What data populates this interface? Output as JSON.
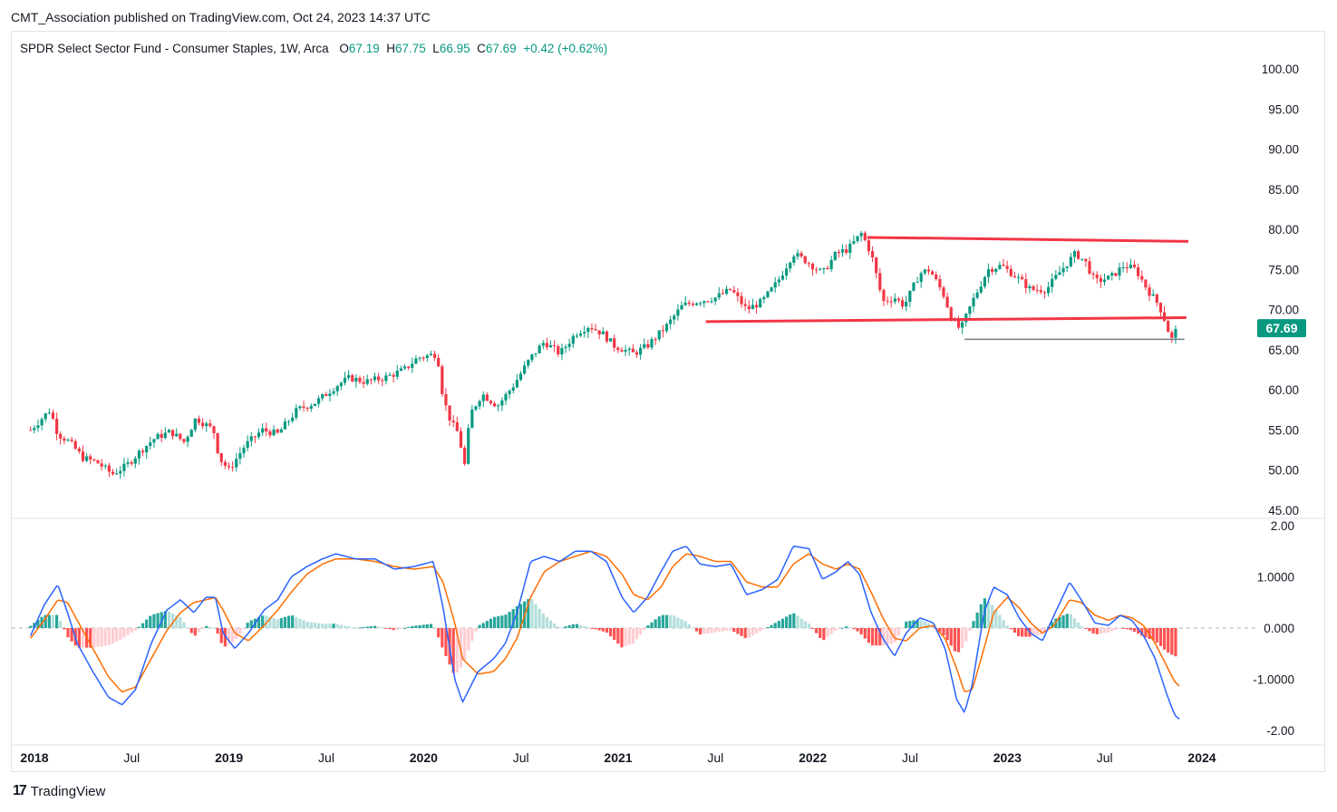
{
  "publisher_line": "CMT_Association published on TradingView.com, Oct 24, 2023 14:37 UTC",
  "legend": {
    "symbol": "SPDR Select Sector Fund - Consumer Staples, 1W, Arca",
    "open_label": "O",
    "open": "67.19",
    "high_label": "H",
    "high": "67.75",
    "low_label": "L",
    "low": "66.95",
    "close_label": "C",
    "close": "67.69",
    "change": "+0.42 (+0.62%)"
  },
  "footer": {
    "brand": "TradingView",
    "logo_icon": "tradingview-logo-icon"
  },
  "colors": {
    "up": "#089981",
    "down": "#f23645",
    "macd": "#2962ff",
    "signal": "#ff6d00",
    "hist_up_strong": "#26a69a",
    "hist_up_weak": "#b2dfdb",
    "hist_down_strong": "#ff5252",
    "hist_down_weak": "#ffcdd2",
    "trendline": "#f23645",
    "support": "#787b86",
    "badge": "#089981"
  },
  "chart_data": [
    {
      "type": "candlestick",
      "title": "SPDR Select Sector Fund - Consumer Staples, 1W, Arca",
      "price_axis_ticks": [
        "100.00",
        "95.00",
        "90.00",
        "85.00",
        "80.00",
        "75.00",
        "70.00",
        "65.00",
        "60.00",
        "55.00",
        "50.00",
        "45.00"
      ],
      "ylim": [
        45,
        100
      ],
      "last_price_label": "67.69",
      "time_axis_ticks": [
        {
          "label": "2018",
          "t": 2018.0,
          "bold": true
        },
        {
          "label": "Jul",
          "t": 2018.5,
          "bold": false
        },
        {
          "label": "2019",
          "t": 2019.0,
          "bold": true
        },
        {
          "label": "Jul",
          "t": 2019.5,
          "bold": false
        },
        {
          "label": "2020",
          "t": 2020.0,
          "bold": true
        },
        {
          "label": "Jul",
          "t": 2020.5,
          "bold": false
        },
        {
          "label": "2021",
          "t": 2021.0,
          "bold": true
        },
        {
          "label": "Jul",
          "t": 2021.5,
          "bold": false
        },
        {
          "label": "2022",
          "t": 2022.0,
          "bold": true
        },
        {
          "label": "Jul",
          "t": 2022.5,
          "bold": false
        },
        {
          "label": "2023",
          "t": 2023.0,
          "bold": true
        },
        {
          "label": "Jul",
          "t": 2023.5,
          "bold": false
        },
        {
          "label": "2024",
          "t": 2024.0,
          "bold": true
        }
      ],
      "xlim": [
        2017.98,
        2024.0
      ],
      "price_path": [
        [
          2017.98,
          55.0
        ],
        [
          2018.08,
          57.5
        ],
        [
          2018.12,
          54.5
        ],
        [
          2018.18,
          53.5
        ],
        [
          2018.25,
          51.5
        ],
        [
          2018.32,
          51.0
        ],
        [
          2018.4,
          49.5
        ],
        [
          2018.47,
          50.5
        ],
        [
          2018.55,
          52.5
        ],
        [
          2018.62,
          54.0
        ],
        [
          2018.7,
          54.8
        ],
        [
          2018.77,
          53.5
        ],
        [
          2018.83,
          56.5
        ],
        [
          2018.92,
          55.0
        ],
        [
          2018.95,
          51.5
        ],
        [
          2019.0,
          50.0
        ],
        [
          2019.08,
          53.0
        ],
        [
          2019.17,
          55.0
        ],
        [
          2019.25,
          54.5
        ],
        [
          2019.35,
          57.5
        ],
        [
          2019.45,
          58.5
        ],
        [
          2019.55,
          60.5
        ],
        [
          2019.62,
          61.5
        ],
        [
          2019.7,
          61.0
        ],
        [
          2019.8,
          61.5
        ],
        [
          2019.9,
          62.5
        ],
        [
          2019.97,
          64.0
        ],
        [
          2020.07,
          64.5
        ],
        [
          2020.1,
          59.0
        ],
        [
          2020.14,
          56.0
        ],
        [
          2020.18,
          54.5
        ],
        [
          2020.21,
          50.5
        ],
        [
          2020.24,
          57.0
        ],
        [
          2020.3,
          59.5
        ],
        [
          2020.38,
          58.0
        ],
        [
          2020.46,
          60.5
        ],
        [
          2020.55,
          64.0
        ],
        [
          2020.62,
          66.0
        ],
        [
          2020.7,
          64.5
        ],
        [
          2020.78,
          67.0
        ],
        [
          2020.85,
          68.0
        ],
        [
          2020.92,
          67.0
        ],
        [
          2020.98,
          65.5
        ],
        [
          2021.08,
          64.5
        ],
        [
          2021.15,
          65.5
        ],
        [
          2021.25,
          68.0
        ],
        [
          2021.33,
          70.5
        ],
        [
          2021.4,
          71.0
        ],
        [
          2021.5,
          71.5
        ],
        [
          2021.58,
          72.5
        ],
        [
          2021.66,
          70.0
        ],
        [
          2021.74,
          71.0
        ],
        [
          2021.82,
          73.5
        ],
        [
          2021.9,
          77.0
        ],
        [
          2021.97,
          76.0
        ],
        [
          2022.05,
          74.5
        ],
        [
          2022.12,
          77.0
        ],
        [
          2022.18,
          77.5
        ],
        [
          2022.25,
          79.5
        ],
        [
          2022.3,
          77.0
        ],
        [
          2022.36,
          71.0
        ],
        [
          2022.42,
          71.5
        ],
        [
          2022.47,
          70.5
        ],
        [
          2022.55,
          74.5
        ],
        [
          2022.6,
          75.0
        ],
        [
          2022.67,
          72.0
        ],
        [
          2022.72,
          68.5
        ],
        [
          2022.76,
          67.5
        ],
        [
          2022.82,
          71.0
        ],
        [
          2022.9,
          75.0
        ],
        [
          2022.97,
          75.5
        ],
        [
          2023.05,
          74.0
        ],
        [
          2023.12,
          72.5
        ],
        [
          2023.2,
          72.5
        ],
        [
          2023.28,
          75.0
        ],
        [
          2023.35,
          77.0
        ],
        [
          2023.4,
          76.0
        ],
        [
          2023.45,
          73.5
        ],
        [
          2023.53,
          74.0
        ],
        [
          2023.6,
          75.5
        ],
        [
          2023.66,
          75.0
        ],
        [
          2023.72,
          72.5
        ],
        [
          2023.78,
          70.5
        ],
        [
          2023.82,
          68.0
        ],
        [
          2023.84,
          66.0
        ],
        [
          2023.86,
          67.2
        ],
        [
          2023.88,
          67.69
        ]
      ],
      "annotations": [
        {
          "name": "upper-resistance-line",
          "color": "#f23645",
          "from": [
            2022.28,
            79.0
          ],
          "to": [
            2023.93,
            78.5
          ]
        },
        {
          "name": "lower-trendline",
          "color": "#f23645",
          "from": [
            2021.45,
            68.5
          ],
          "to": [
            2023.92,
            69.0
          ]
        },
        {
          "name": "support-line",
          "color": "#787b86",
          "from": [
            2022.78,
            66.3
          ],
          "to": [
            2023.91,
            66.3
          ]
        }
      ]
    },
    {
      "type": "macd",
      "axis_ticks": [
        "2.00",
        "1.0000",
        "0.000",
        "-1.0000",
        "-2.00"
      ],
      "ylim": [
        -2.2,
        2.1
      ],
      "macd_series": [
        [
          2017.98,
          -0.15
        ],
        [
          2018.05,
          0.45
        ],
        [
          2018.12,
          0.85
        ],
        [
          2018.17,
          0.3
        ],
        [
          2018.22,
          -0.3
        ],
        [
          2018.3,
          -0.85
        ],
        [
          2018.38,
          -1.35
        ],
        [
          2018.45,
          -1.5
        ],
        [
          2018.52,
          -1.2
        ],
        [
          2018.6,
          -0.3
        ],
        [
          2018.68,
          0.35
        ],
        [
          2018.75,
          0.55
        ],
        [
          2018.82,
          0.3
        ],
        [
          2018.88,
          0.6
        ],
        [
          2018.93,
          0.6
        ],
        [
          2018.97,
          -0.1
        ],
        [
          2019.03,
          -0.4
        ],
        [
          2019.1,
          -0.1
        ],
        [
          2019.18,
          0.35
        ],
        [
          2019.25,
          0.55
        ],
        [
          2019.32,
          1.0
        ],
        [
          2019.4,
          1.2
        ],
        [
          2019.48,
          1.35
        ],
        [
          2019.55,
          1.45
        ],
        [
          2019.65,
          1.35
        ],
        [
          2019.75,
          1.35
        ],
        [
          2019.85,
          1.15
        ],
        [
          2019.95,
          1.2
        ],
        [
          2020.05,
          1.3
        ],
        [
          2020.1,
          0.4
        ],
        [
          2020.16,
          -1.0
        ],
        [
          2020.2,
          -1.45
        ],
        [
          2020.28,
          -0.85
        ],
        [
          2020.36,
          -0.6
        ],
        [
          2020.42,
          -0.3
        ],
        [
          2020.48,
          0.3
        ],
        [
          2020.55,
          1.3
        ],
        [
          2020.62,
          1.4
        ],
        [
          2020.7,
          1.3
        ],
        [
          2020.78,
          1.5
        ],
        [
          2020.86,
          1.5
        ],
        [
          2020.94,
          1.3
        ],
        [
          2021.02,
          0.6
        ],
        [
          2021.08,
          0.3
        ],
        [
          2021.15,
          0.6
        ],
        [
          2021.22,
          1.1
        ],
        [
          2021.28,
          1.5
        ],
        [
          2021.35,
          1.6
        ],
        [
          2021.42,
          1.25
        ],
        [
          2021.5,
          1.2
        ],
        [
          2021.58,
          1.25
        ],
        [
          2021.66,
          0.65
        ],
        [
          2021.74,
          0.75
        ],
        [
          2021.82,
          0.95
        ],
        [
          2021.9,
          1.6
        ],
        [
          2021.98,
          1.55
        ],
        [
          2022.05,
          0.95
        ],
        [
          2022.12,
          1.1
        ],
        [
          2022.18,
          1.3
        ],
        [
          2022.24,
          1.05
        ],
        [
          2022.3,
          0.3
        ],
        [
          2022.36,
          -0.2
        ],
        [
          2022.42,
          -0.55
        ],
        [
          2022.48,
          -0.1
        ],
        [
          2022.55,
          0.2
        ],
        [
          2022.62,
          0.1
        ],
        [
          2022.68,
          -0.4
        ],
        [
          2022.74,
          -1.4
        ],
        [
          2022.78,
          -1.65
        ],
        [
          2022.82,
          -1.1
        ],
        [
          2022.88,
          0.3
        ],
        [
          2022.93,
          0.8
        ],
        [
          2023.0,
          0.65
        ],
        [
          2023.06,
          0.2
        ],
        [
          2023.12,
          -0.1
        ],
        [
          2023.18,
          -0.25
        ],
        [
          2023.24,
          0.25
        ],
        [
          2023.32,
          0.9
        ],
        [
          2023.38,
          0.55
        ],
        [
          2023.45,
          0.1
        ],
        [
          2023.52,
          0.05
        ],
        [
          2023.58,
          0.25
        ],
        [
          2023.64,
          0.15
        ],
        [
          2023.7,
          -0.15
        ],
        [
          2023.76,
          -0.6
        ],
        [
          2023.82,
          -1.3
        ],
        [
          2023.86,
          -1.7
        ],
        [
          2023.89,
          -1.8
        ]
      ],
      "signal_series": [
        [
          2017.98,
          -0.2
        ],
        [
          2018.05,
          0.15
        ],
        [
          2018.12,
          0.55
        ],
        [
          2018.17,
          0.5
        ],
        [
          2018.22,
          0.15
        ],
        [
          2018.3,
          -0.4
        ],
        [
          2018.38,
          -0.95
        ],
        [
          2018.45,
          -1.25
        ],
        [
          2018.52,
          -1.15
        ],
        [
          2018.6,
          -0.6
        ],
        [
          2018.68,
          -0.05
        ],
        [
          2018.75,
          0.3
        ],
        [
          2018.82,
          0.5
        ],
        [
          2018.88,
          0.55
        ],
        [
          2018.93,
          0.6
        ],
        [
          2018.97,
          0.35
        ],
        [
          2019.03,
          -0.1
        ],
        [
          2019.1,
          -0.25
        ],
        [
          2019.18,
          0.05
        ],
        [
          2019.25,
          0.35
        ],
        [
          2019.32,
          0.7
        ],
        [
          2019.4,
          1.05
        ],
        [
          2019.48,
          1.25
        ],
        [
          2019.55,
          1.35
        ],
        [
          2019.65,
          1.35
        ],
        [
          2019.75,
          1.3
        ],
        [
          2019.85,
          1.2
        ],
        [
          2019.95,
          1.15
        ],
        [
          2020.05,
          1.2
        ],
        [
          2020.1,
          0.9
        ],
        [
          2020.16,
          0.1
        ],
        [
          2020.2,
          -0.6
        ],
        [
          2020.28,
          -0.9
        ],
        [
          2020.36,
          -0.85
        ],
        [
          2020.42,
          -0.6
        ],
        [
          2020.48,
          -0.2
        ],
        [
          2020.55,
          0.6
        ],
        [
          2020.62,
          1.1
        ],
        [
          2020.7,
          1.3
        ],
        [
          2020.78,
          1.4
        ],
        [
          2020.86,
          1.5
        ],
        [
          2020.94,
          1.4
        ],
        [
          2021.02,
          1.05
        ],
        [
          2021.08,
          0.65
        ],
        [
          2021.15,
          0.55
        ],
        [
          2021.22,
          0.8
        ],
        [
          2021.28,
          1.2
        ],
        [
          2021.35,
          1.45
        ],
        [
          2021.42,
          1.4
        ],
        [
          2021.5,
          1.3
        ],
        [
          2021.58,
          1.3
        ],
        [
          2021.66,
          0.9
        ],
        [
          2021.74,
          0.8
        ],
        [
          2021.82,
          0.8
        ],
        [
          2021.9,
          1.25
        ],
        [
          2021.98,
          1.45
        ],
        [
          2022.05,
          1.25
        ],
        [
          2022.12,
          1.15
        ],
        [
          2022.18,
          1.25
        ],
        [
          2022.24,
          1.15
        ],
        [
          2022.3,
          0.7
        ],
        [
          2022.36,
          0.2
        ],
        [
          2022.42,
          -0.2
        ],
        [
          2022.48,
          -0.25
        ],
        [
          2022.55,
          0.0
        ],
        [
          2022.62,
          0.05
        ],
        [
          2022.68,
          -0.2
        ],
        [
          2022.74,
          -0.8
        ],
        [
          2022.78,
          -1.25
        ],
        [
          2022.82,
          -1.2
        ],
        [
          2022.88,
          -0.4
        ],
        [
          2022.93,
          0.3
        ],
        [
          2023.0,
          0.6
        ],
        [
          2023.06,
          0.4
        ],
        [
          2023.12,
          0.1
        ],
        [
          2023.18,
          -0.1
        ],
        [
          2023.24,
          0.05
        ],
        [
          2023.32,
          0.55
        ],
        [
          2023.38,
          0.5
        ],
        [
          2023.45,
          0.25
        ],
        [
          2023.52,
          0.15
        ],
        [
          2023.58,
          0.25
        ],
        [
          2023.64,
          0.2
        ],
        [
          2023.7,
          0.05
        ],
        [
          2023.76,
          -0.3
        ],
        [
          2023.82,
          -0.75
        ],
        [
          2023.86,
          -1.05
        ],
        [
          2023.89,
          -1.15
        ]
      ]
    }
  ]
}
